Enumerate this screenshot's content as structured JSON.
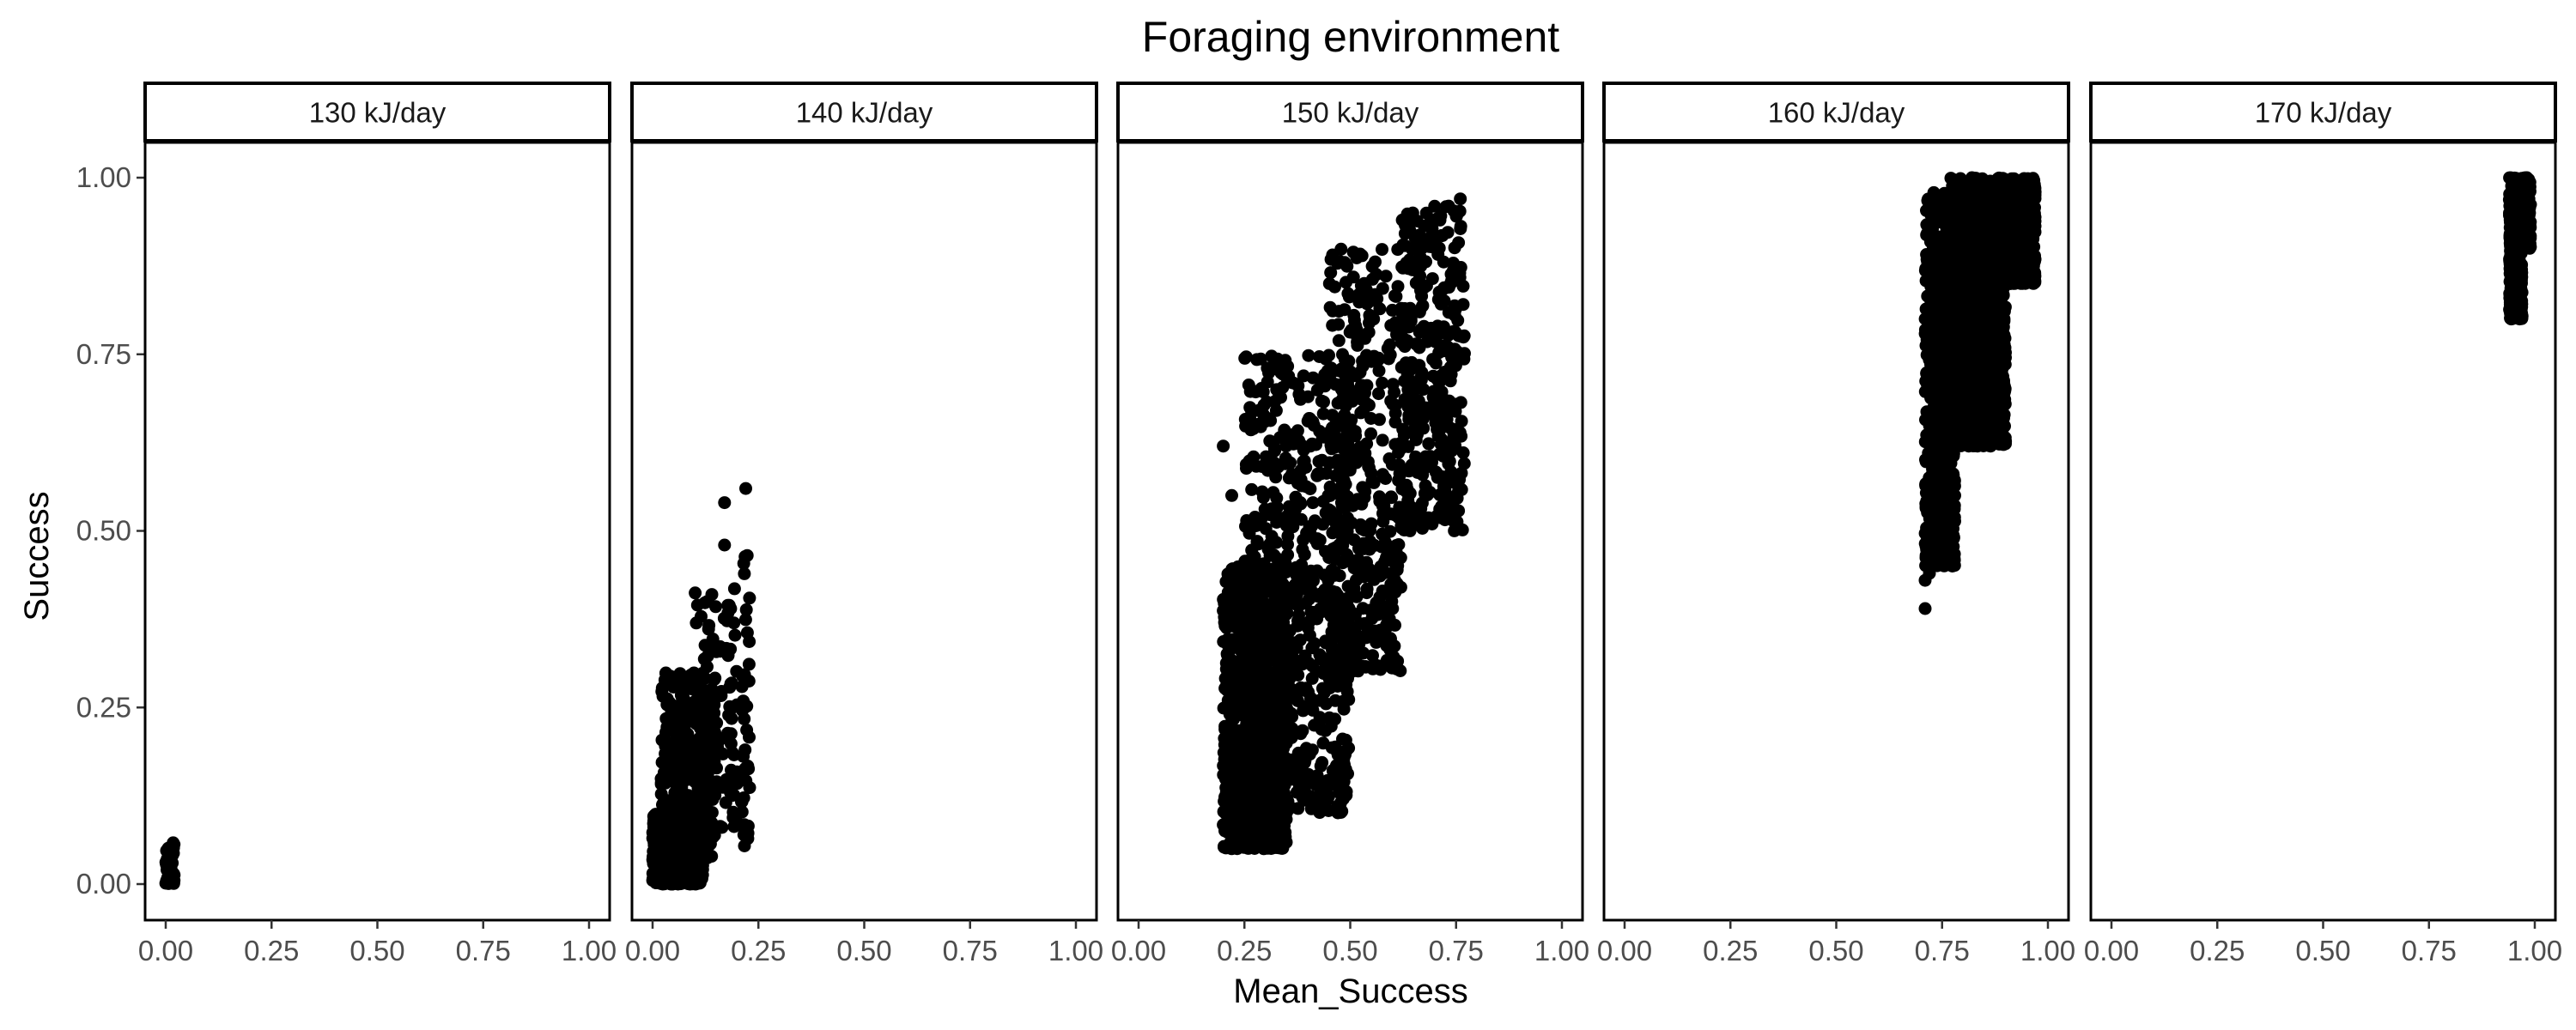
{
  "chart_data": {
    "type": "scatter",
    "title": "Foraging environment",
    "xlabel": "Mean_Success",
    "ylabel": "Success",
    "xlim": [
      0,
      1
    ],
    "ylim": [
      0,
      1
    ],
    "x_ticks": [
      "0.00",
      "0.25",
      "0.50",
      "0.75",
      "1.00"
    ],
    "y_ticks": [
      "0.00",
      "0.25",
      "0.50",
      "0.75",
      "1.00"
    ],
    "grid": false,
    "legend": "none",
    "point_color": "#000000",
    "panels": [
      {
        "label": "130 kJ/day",
        "clusters": [
          {
            "x": [
              0.0,
              0.02
            ],
            "y": [
              0.0,
              0.06
            ],
            "n": 45
          },
          {
            "x": [
              0.0,
              0.02
            ],
            "y": [
              0.0,
              0.09
            ],
            "n": 8
          }
        ]
      },
      {
        "label": "140 kJ/day",
        "clusters": [
          {
            "x": [
              0.0,
              0.12
            ],
            "y": [
              0.0,
              0.1
            ],
            "n": 700
          },
          {
            "x": [
              0.02,
              0.15
            ],
            "y": [
              0.03,
              0.3
            ],
            "n": 350
          },
          {
            "x": [
              0.1,
              0.2
            ],
            "y": [
              0.08,
              0.42
            ],
            "n": 120
          },
          {
            "x": [
              0.21,
              0.23
            ],
            "y": [
              0.05,
              0.47
            ],
            "n": 40
          }
        ],
        "points": [
          [
            0.17,
            0.48
          ],
          [
            0.17,
            0.54
          ],
          [
            0.22,
            0.56
          ],
          [
            0.14,
            0.41
          ]
        ]
      },
      {
        "label": "150 kJ/day",
        "clusters": [
          {
            "x": [
              0.2,
              0.35
            ],
            "y": [
              0.05,
              0.45
            ],
            "n": 900
          },
          {
            "x": [
              0.25,
              0.5
            ],
            "y": [
              0.1,
              0.75
            ],
            "n": 700
          },
          {
            "x": [
              0.45,
              0.62
            ],
            "y": [
              0.3,
              0.9
            ],
            "n": 400
          },
          {
            "x": [
              0.62,
              0.77
            ],
            "y": [
              0.5,
              0.96
            ],
            "n": 350
          }
        ],
        "points": [
          [
            0.2,
            0.62
          ],
          [
            0.22,
            0.55
          ],
          [
            0.6,
            0.39
          ],
          [
            0.68,
            0.95
          ],
          [
            0.76,
            0.97
          ]
        ]
      },
      {
        "label": "160 kJ/day",
        "clusters": [
          {
            "x": [
              0.71,
              0.78
            ],
            "y": [
              0.45,
              0.98
            ],
            "n": 600
          },
          {
            "x": [
              0.77,
              0.9
            ],
            "y": [
              0.62,
              1.0
            ],
            "n": 1200
          },
          {
            "x": [
              0.88,
              0.97
            ],
            "y": [
              0.85,
              1.0
            ],
            "n": 900
          }
        ],
        "points": [
          [
            0.71,
            0.39
          ],
          [
            0.71,
            0.43
          ],
          [
            0.72,
            0.44
          ],
          [
            0.78,
            0.55
          ]
        ]
      },
      {
        "label": "170 kJ/day",
        "clusters": [
          {
            "x": [
              0.94,
              0.97
            ],
            "y": [
              0.8,
              1.0
            ],
            "n": 500
          },
          {
            "x": [
              0.95,
              0.99
            ],
            "y": [
              0.9,
              1.0
            ],
            "n": 300
          }
        ]
      }
    ]
  }
}
